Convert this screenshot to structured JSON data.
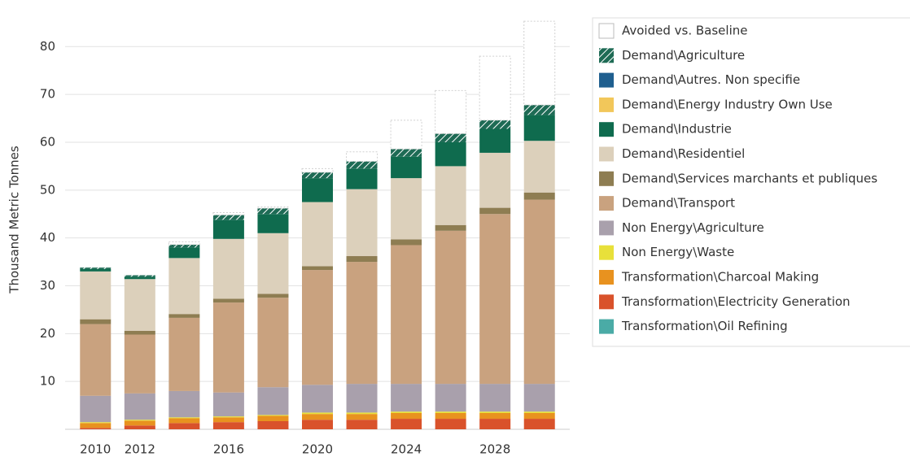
{
  "chart_data": {
    "type": "stacked_bar",
    "y_label": "Thousand Metric Tonnes",
    "categories": [
      "2010",
      "2012",
      null,
      "2016",
      null,
      "2020",
      null,
      "2024",
      null,
      "2028",
      null
    ],
    "ylim": [
      0,
      86
    ],
    "yticks": [
      10,
      20,
      30,
      40,
      50,
      60,
      70,
      80
    ],
    "grid": true,
    "series": [
      {
        "name": "Avoided vs. Baseline",
        "color": "#ffffff",
        "outline": true,
        "values": [
          0,
          0,
          0.6,
          0.5,
          0.3,
          0.8,
          2,
          6,
          9,
          13.4,
          17.5
        ]
      },
      {
        "name": "Demand\\Agriculture",
        "color": "#1e6b55",
        "hatch": true,
        "values": [
          0.3,
          0.3,
          0.6,
          1,
          1.2,
          1.2,
          1.5,
          1.6,
          1.8,
          1.8,
          2.1
        ]
      },
      {
        "name": "Demand\\Autres. Non specifie",
        "color": "#1f5f8f",
        "values": [
          0,
          0,
          0,
          0,
          0,
          0,
          0,
          0,
          0,
          0,
          0
        ]
      },
      {
        "name": "Demand\\Energy Industry Own Use",
        "color": "#f2c75a",
        "values": [
          0,
          0,
          0,
          0,
          0,
          0,
          0,
          0,
          0,
          0,
          0
        ]
      },
      {
        "name": "Demand\\Industrie",
        "color": "#0f6b4e",
        "values": [
          0.5,
          0.5,
          2.2,
          4,
          4,
          5,
          4.3,
          4.5,
          5,
          5,
          5.4
        ]
      },
      {
        "name": "Demand\\Residentiel",
        "color": "#dcd0bb",
        "values": [
          10,
          10.8,
          11.7,
          12.5,
          12.7,
          13.4,
          14,
          12.8,
          12.3,
          11.5,
          10.8
        ]
      },
      {
        "name": "Demand\\Services marchants et publiques",
        "color": "#8e7d52",
        "values": [
          1,
          0.8,
          0.8,
          0.8,
          0.8,
          0.8,
          1.2,
          1.2,
          1.2,
          1.3,
          1.5
        ]
      },
      {
        "name": "Demand\\Transport",
        "color": "#c9a27f",
        "values": [
          15,
          12.3,
          15.3,
          18.8,
          18.7,
          24,
          25.5,
          29,
          32,
          35.5,
          38.5
        ]
      },
      {
        "name": "Non Energy\\Agriculture",
        "color": "#a9a0ac",
        "values": [
          5.5,
          5.5,
          5.5,
          5,
          5.8,
          5.8,
          6,
          5.8,
          5.8,
          5.8,
          5.8
        ]
      },
      {
        "name": "Non Energy\\Waste",
        "color": "#e8e03a",
        "values": [
          0.2,
          0.2,
          0.2,
          0.2,
          0.2,
          0.3,
          0.3,
          0.3,
          0.3,
          0.3,
          0.3
        ]
      },
      {
        "name": "Transformation\\Charcoal Making",
        "color": "#e8921f",
        "values": [
          1,
          1,
          1,
          1,
          1.1,
          1.2,
          1.2,
          1.2,
          1.2,
          1.2,
          1.2
        ]
      },
      {
        "name": "Transformation\\Electricity Generation",
        "color": "#d9522b",
        "values": [
          0.3,
          0.8,
          1.3,
          1.5,
          1.7,
          2,
          2,
          2.2,
          2.2,
          2.2,
          2.2
        ]
      },
      {
        "name": "Transformation\\Oil Refining",
        "color": "#4aaba6",
        "values": [
          0,
          0,
          0,
          0,
          0,
          0,
          0,
          0,
          0,
          0,
          0
        ]
      }
    ]
  }
}
